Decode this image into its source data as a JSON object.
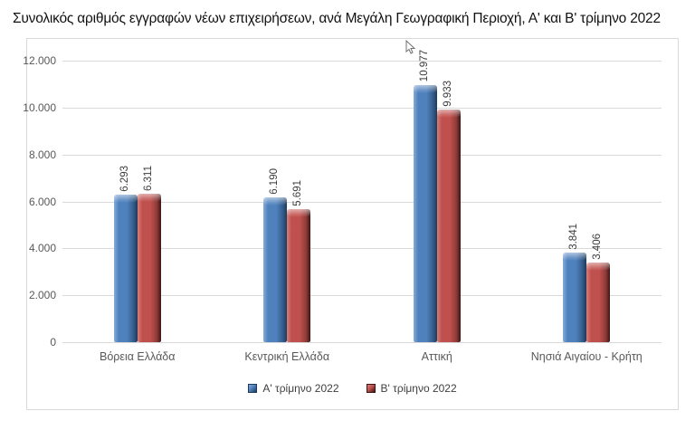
{
  "title": "Συνολικός αριθμός εγγραφών νέων επιχειρήσεων, ανά Μεγάλη Γεωγραφική Περιοχή, Α' και Β' τρίμηνο 2022",
  "chart_data": {
    "type": "bar",
    "categories": [
      "Βόρεια Ελλάδα",
      "Κεντρική Ελλάδα",
      "Αττική",
      "Νησιά Αιγαίου - Κρήτη"
    ],
    "series": [
      {
        "name": "Α' τρίμηνο 2022",
        "values": [
          6293,
          6190,
          10977,
          3841
        ],
        "color": "#4F81BD",
        "color_light": "#85ABD8",
        "color_dark": "#355E8E",
        "color_edge": "#203A59"
      },
      {
        "name": "Β' τρίμηνο 2022",
        "values": [
          6311,
          5691,
          9933,
          3406
        ],
        "color": "#C0504D",
        "color_light": "#D47F7C",
        "color_dark": "#8E3B38",
        "color_edge": "#3C1514"
      }
    ],
    "title": "Συνολικός αριθμός εγγραφών νέων επιχειρήσεων, ανά Μεγάλη Γεωγραφική Περιοχή, Α' και Β' τρίμηνο 2022",
    "xlabel": "",
    "ylabel": "",
    "ylim": [
      0,
      12000
    ],
    "ytick_step": 2000,
    "ytick_labels": [
      "0",
      "2.000",
      "4.000",
      "6.000",
      "8.000",
      "10.000",
      "12.000"
    ],
    "grid": true,
    "legend_position": "bottom",
    "value_labels": [
      [
        "6.293",
        "6.190",
        "10.977",
        "3.841"
      ],
      [
        "6.311",
        "5.691",
        "9.933",
        "3.406"
      ]
    ],
    "value_labels_rotated": true,
    "number_format": "thousands-dot"
  },
  "colors": {
    "gridline": "#d9d9d9",
    "chart_border": "#d9d9d9",
    "axis_text": "#595959",
    "value_text": "#3c3c3c",
    "legend_text": "#404040",
    "title_text": "#111111"
  }
}
